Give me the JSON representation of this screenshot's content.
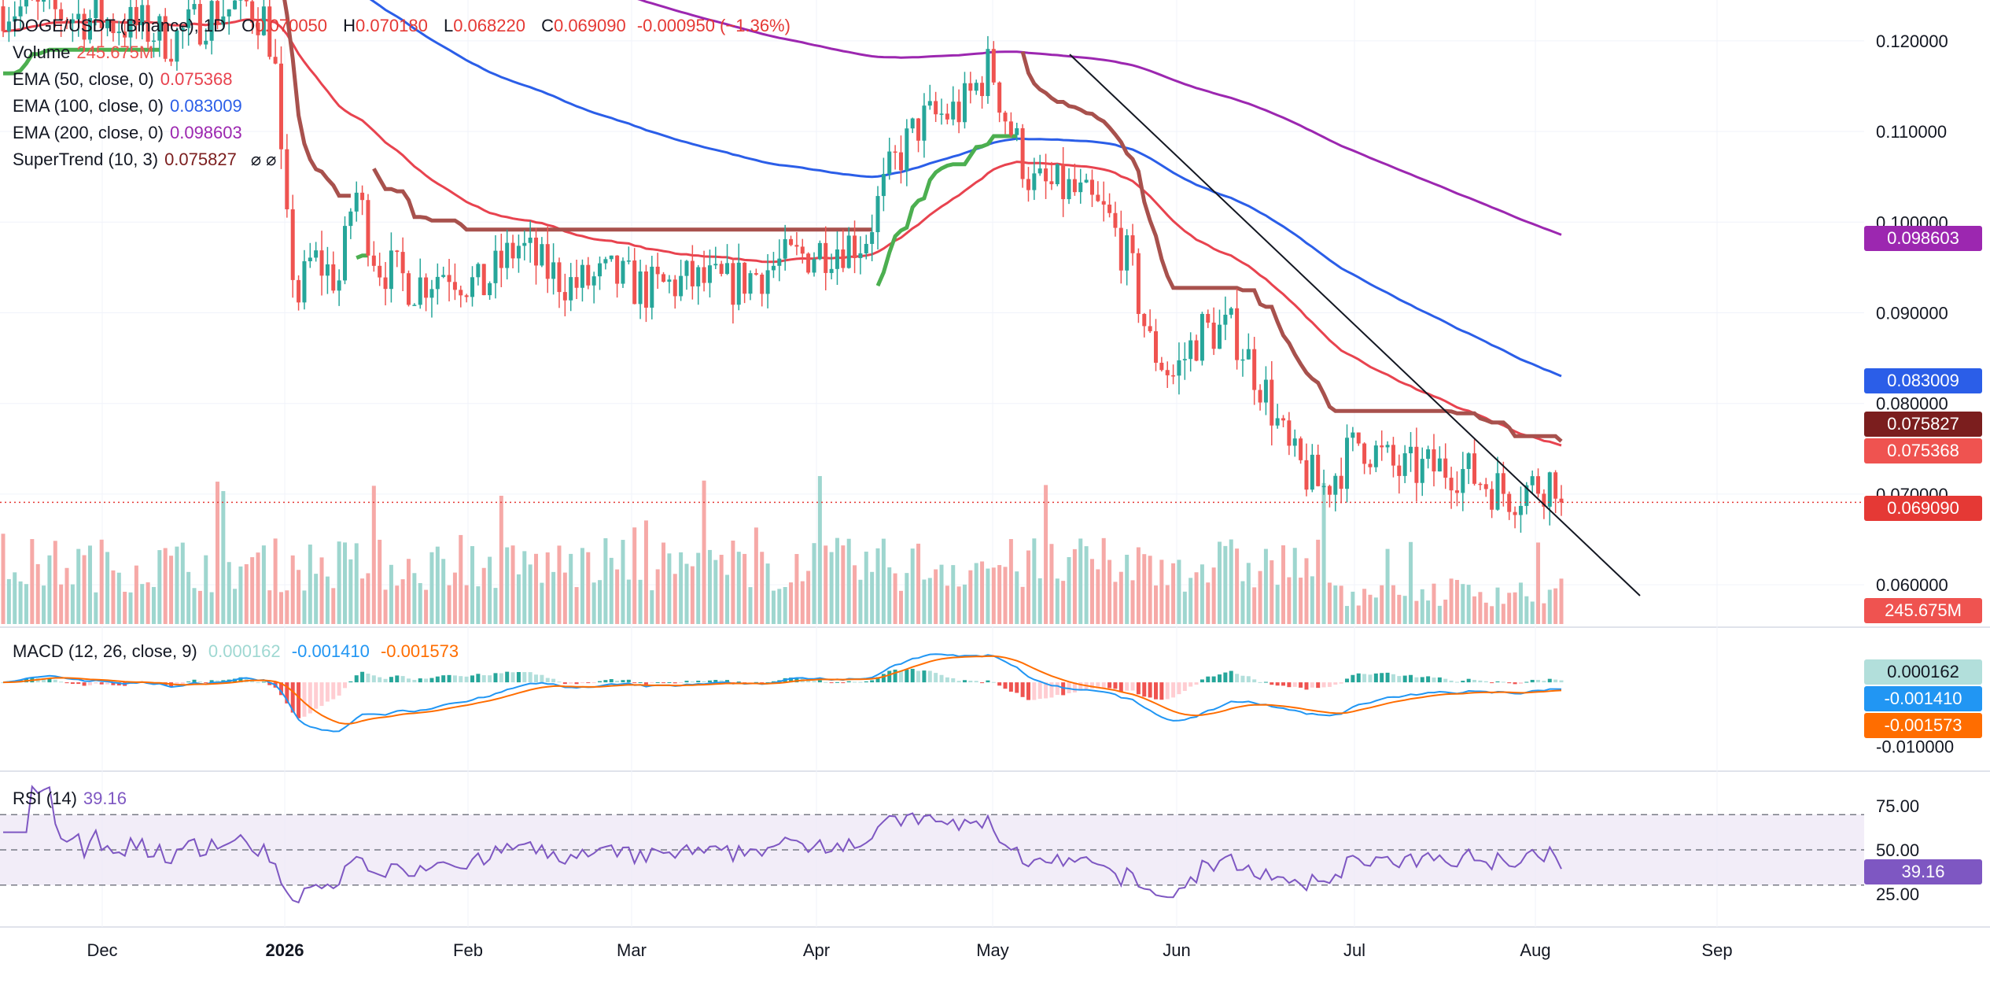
{
  "colors": {
    "up": "#26a69a",
    "down": "#ef5350",
    "ema50": "#e8434f",
    "ema100": "#2b5ee8",
    "ema200": "#9c27b0",
    "st_bear": "#a8514d",
    "st_bull": "#4caf50",
    "macd": "#2196f3",
    "signal": "#ff6d00",
    "rsi": "#7e57c2",
    "rsi_band": "#7e57c2"
  },
  "legend": {
    "symbol": "DOGE/USDT (Binance), 1D",
    "o_label": "O",
    "o": "0.070050",
    "h_label": "H",
    "h": "0.070180",
    "l_label": "L",
    "l": "0.068220",
    "c_label": "C",
    "c": "0.069090",
    "change": "-0.000950 (−1.36%)",
    "volume_label": "Volume",
    "volume": "245.675M",
    "ema50_label": "EMA (50, close, 0)",
    "ema50": "0.075368",
    "ema100_label": "EMA (100, close, 0)",
    "ema100": "0.083009",
    "ema200_label": "EMA (200, close, 0)",
    "ema200": "0.098603",
    "st_label": "SuperTrend (10, 3)",
    "st": "0.075827",
    "st_icons": "⌀  ⌀",
    "macd_label": "MACD (12, 26, close, 9)",
    "macd_hist": "0.000162",
    "macd_line": "-0.001410",
    "macd_signal": "-0.001573",
    "rsi_label": "RSI (14)",
    "rsi": "39.16"
  },
  "price_labels": {
    "ema200": "0.098603",
    "ema100": "0.083009",
    "st": "0.075827",
    "ema50": "0.075368",
    "close": "0.069090",
    "volume": "245.675M",
    "macd_hist": "0.000162",
    "macd_line": "-0.001410",
    "macd_signal": "-0.001573",
    "rsi": "39.16"
  },
  "chart_data": {
    "type": "candlestick",
    "x_axis_ticks": [
      "Dec",
      "2026",
      "Feb",
      "Mar",
      "Apr",
      "May",
      "Jun",
      "Jul",
      "Aug",
      "Sep"
    ],
    "price_axis_ticks": [
      "0.120000",
      "0.110000",
      "0.100000",
      "0.090000",
      "0.080000",
      "0.070000",
      "0.060000"
    ],
    "price_axis_values": [
      0.12,
      0.11,
      0.1,
      0.09,
      0.08,
      0.07,
      0.06
    ],
    "macd_axis_ticks": [
      "-0.010000"
    ],
    "rsi_axis_ticks": [
      "75.00",
      "50.00",
      "25.00"
    ],
    "rsi_levels": [
      70,
      50,
      30
    ],
    "price_range": [
      0.0555,
      0.1245
    ],
    "last_close": 0.06909,
    "trendline": [
      [
        0.1185,
        0.0588
      ]
    ],
    "candles": [
      {
        "o": 0.1238,
        "h": 0.1248,
        "l": 0.1196,
        "c": 0.1205
      },
      {
        "o": 0.1205,
        "h": 0.1228,
        "l": 0.1185,
        "c": 0.1221
      },
      {
        "o": 0.1221,
        "h": 0.1245,
        "l": 0.1205,
        "c": 0.1231
      },
      {
        "o": 0.1231,
        "h": 0.124,
        "l": 0.1188,
        "c": 0.1194
      },
      {
        "o": 0.1194,
        "h": 0.1262,
        "l": 0.1186,
        "c": 0.1249
      },
      {
        "o": 0.1249,
        "h": 0.127,
        "l": 0.123,
        "c": 0.1238
      }
    ],
    "series_note_values": {
      "ema50_last": 0.075368,
      "ema100_last": 0.083009,
      "ema200_last": 0.098603,
      "supertrend_last": 0.075827,
      "rsi_last": 39.16,
      "macd_last": -0.00141,
      "signal_last": -0.001573,
      "hist_last": 0.000162,
      "volume_last": "245.675M"
    }
  }
}
